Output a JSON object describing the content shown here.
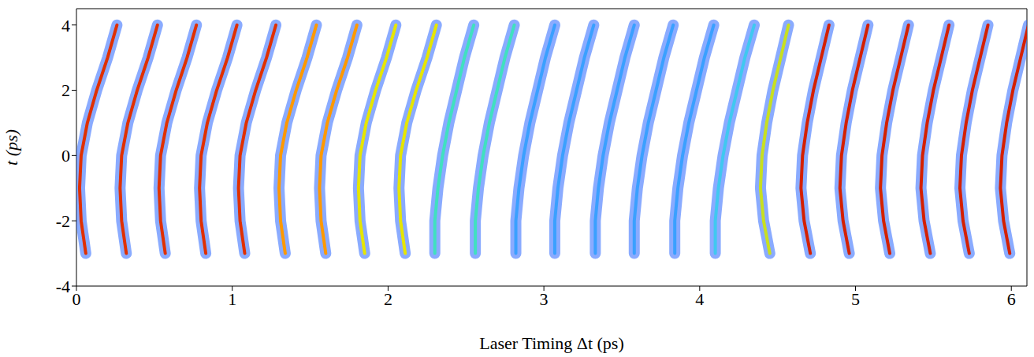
{
  "chart_data": {
    "type": "line",
    "x_label": "Laser Timing     Δt  (ps)",
    "y_label": "t  (ps)",
    "xlim": [
      0,
      6.1
    ],
    "ylim": [
      -4,
      4.5
    ],
    "xticks": [
      0,
      1,
      2,
      3,
      4,
      5,
      6
    ],
    "yticks": [
      -4,
      -2,
      0,
      2,
      4
    ],
    "y": [
      -3,
      -2,
      -1,
      0,
      1,
      2,
      3,
      4
    ],
    "series": [
      {
        "color": "#e03000",
        "x": [
          0.06,
          0.03,
          0.02,
          0.03,
          0.07,
          0.13,
          0.2,
          0.26
        ]
      },
      {
        "color": "#e03000",
        "x": [
          0.32,
          0.29,
          0.28,
          0.29,
          0.33,
          0.39,
          0.46,
          0.52
        ]
      },
      {
        "color": "#e03000",
        "x": [
          0.57,
          0.54,
          0.53,
          0.54,
          0.58,
          0.64,
          0.71,
          0.77
        ]
      },
      {
        "color": "#e03000",
        "x": [
          0.83,
          0.8,
          0.79,
          0.8,
          0.84,
          0.9,
          0.97,
          1.03
        ]
      },
      {
        "color": "#e03000",
        "x": [
          1.08,
          1.05,
          1.04,
          1.05,
          1.09,
          1.15,
          1.22,
          1.28
        ]
      },
      {
        "color": "#ff9900",
        "x": [
          1.34,
          1.31,
          1.3,
          1.31,
          1.35,
          1.41,
          1.48,
          1.54
        ]
      },
      {
        "color": "#ff9900",
        "x": [
          1.6,
          1.57,
          1.56,
          1.57,
          1.61,
          1.67,
          1.74,
          1.8
        ]
      },
      {
        "color": "#e6e600",
        "x": [
          1.85,
          1.82,
          1.81,
          1.82,
          1.86,
          1.92,
          1.99,
          2.05
        ]
      },
      {
        "color": "#e6e600",
        "x": [
          2.11,
          2.08,
          2.07,
          2.08,
          2.12,
          2.18,
          2.25,
          2.31
        ]
      },
      {
        "color": "#40e0c0",
        "x": [
          2.3,
          2.3,
          2.32,
          2.35,
          2.39,
          2.44,
          2.49,
          2.55
        ]
      },
      {
        "color": "#40e0c0",
        "x": [
          2.56,
          2.56,
          2.58,
          2.61,
          2.65,
          2.7,
          2.75,
          2.81
        ]
      },
      {
        "color": "#3aa0ff",
        "x": [
          2.82,
          2.82,
          2.84,
          2.87,
          2.91,
          2.96,
          3.01,
          3.07
        ]
      },
      {
        "color": "#3aa0ff",
        "x": [
          3.07,
          3.07,
          3.09,
          3.12,
          3.16,
          3.21,
          3.26,
          3.32
        ]
      },
      {
        "color": "#3aa0ff",
        "x": [
          3.33,
          3.33,
          3.35,
          3.38,
          3.42,
          3.47,
          3.52,
          3.58
        ]
      },
      {
        "color": "#3aa0ff",
        "x": [
          3.58,
          3.58,
          3.6,
          3.63,
          3.67,
          3.72,
          3.77,
          3.83
        ]
      },
      {
        "color": "#3aa0ff",
        "x": [
          3.84,
          3.84,
          3.86,
          3.89,
          3.93,
          3.98,
          4.03,
          4.09
        ]
      },
      {
        "color": "#40c8f0",
        "x": [
          4.1,
          4.1,
          4.12,
          4.15,
          4.19,
          4.24,
          4.29,
          4.35
        ]
      },
      {
        "color": "#c8e020",
        "x": [
          4.45,
          4.41,
          4.39,
          4.4,
          4.43,
          4.47,
          4.52,
          4.57
        ]
      },
      {
        "color": "#d42000",
        "x": [
          4.71,
          4.67,
          4.65,
          4.66,
          4.69,
          4.73,
          4.78,
          4.83
        ]
      },
      {
        "color": "#d42000",
        "x": [
          4.96,
          4.92,
          4.9,
          4.91,
          4.94,
          4.98,
          5.03,
          5.08
        ]
      },
      {
        "color": "#d42000",
        "x": [
          5.22,
          5.18,
          5.16,
          5.17,
          5.2,
          5.24,
          5.29,
          5.34
        ]
      },
      {
        "color": "#d42000",
        "x": [
          5.48,
          5.44,
          5.42,
          5.43,
          5.46,
          5.5,
          5.55,
          5.6
        ]
      },
      {
        "color": "#d42000",
        "x": [
          5.73,
          5.69,
          5.67,
          5.68,
          5.71,
          5.75,
          5.8,
          5.85
        ]
      },
      {
        "color": "#d42000",
        "x": [
          5.99,
          5.95,
          5.93,
          5.94,
          5.97,
          6.01,
          6.06,
          6.11
        ]
      }
    ]
  }
}
